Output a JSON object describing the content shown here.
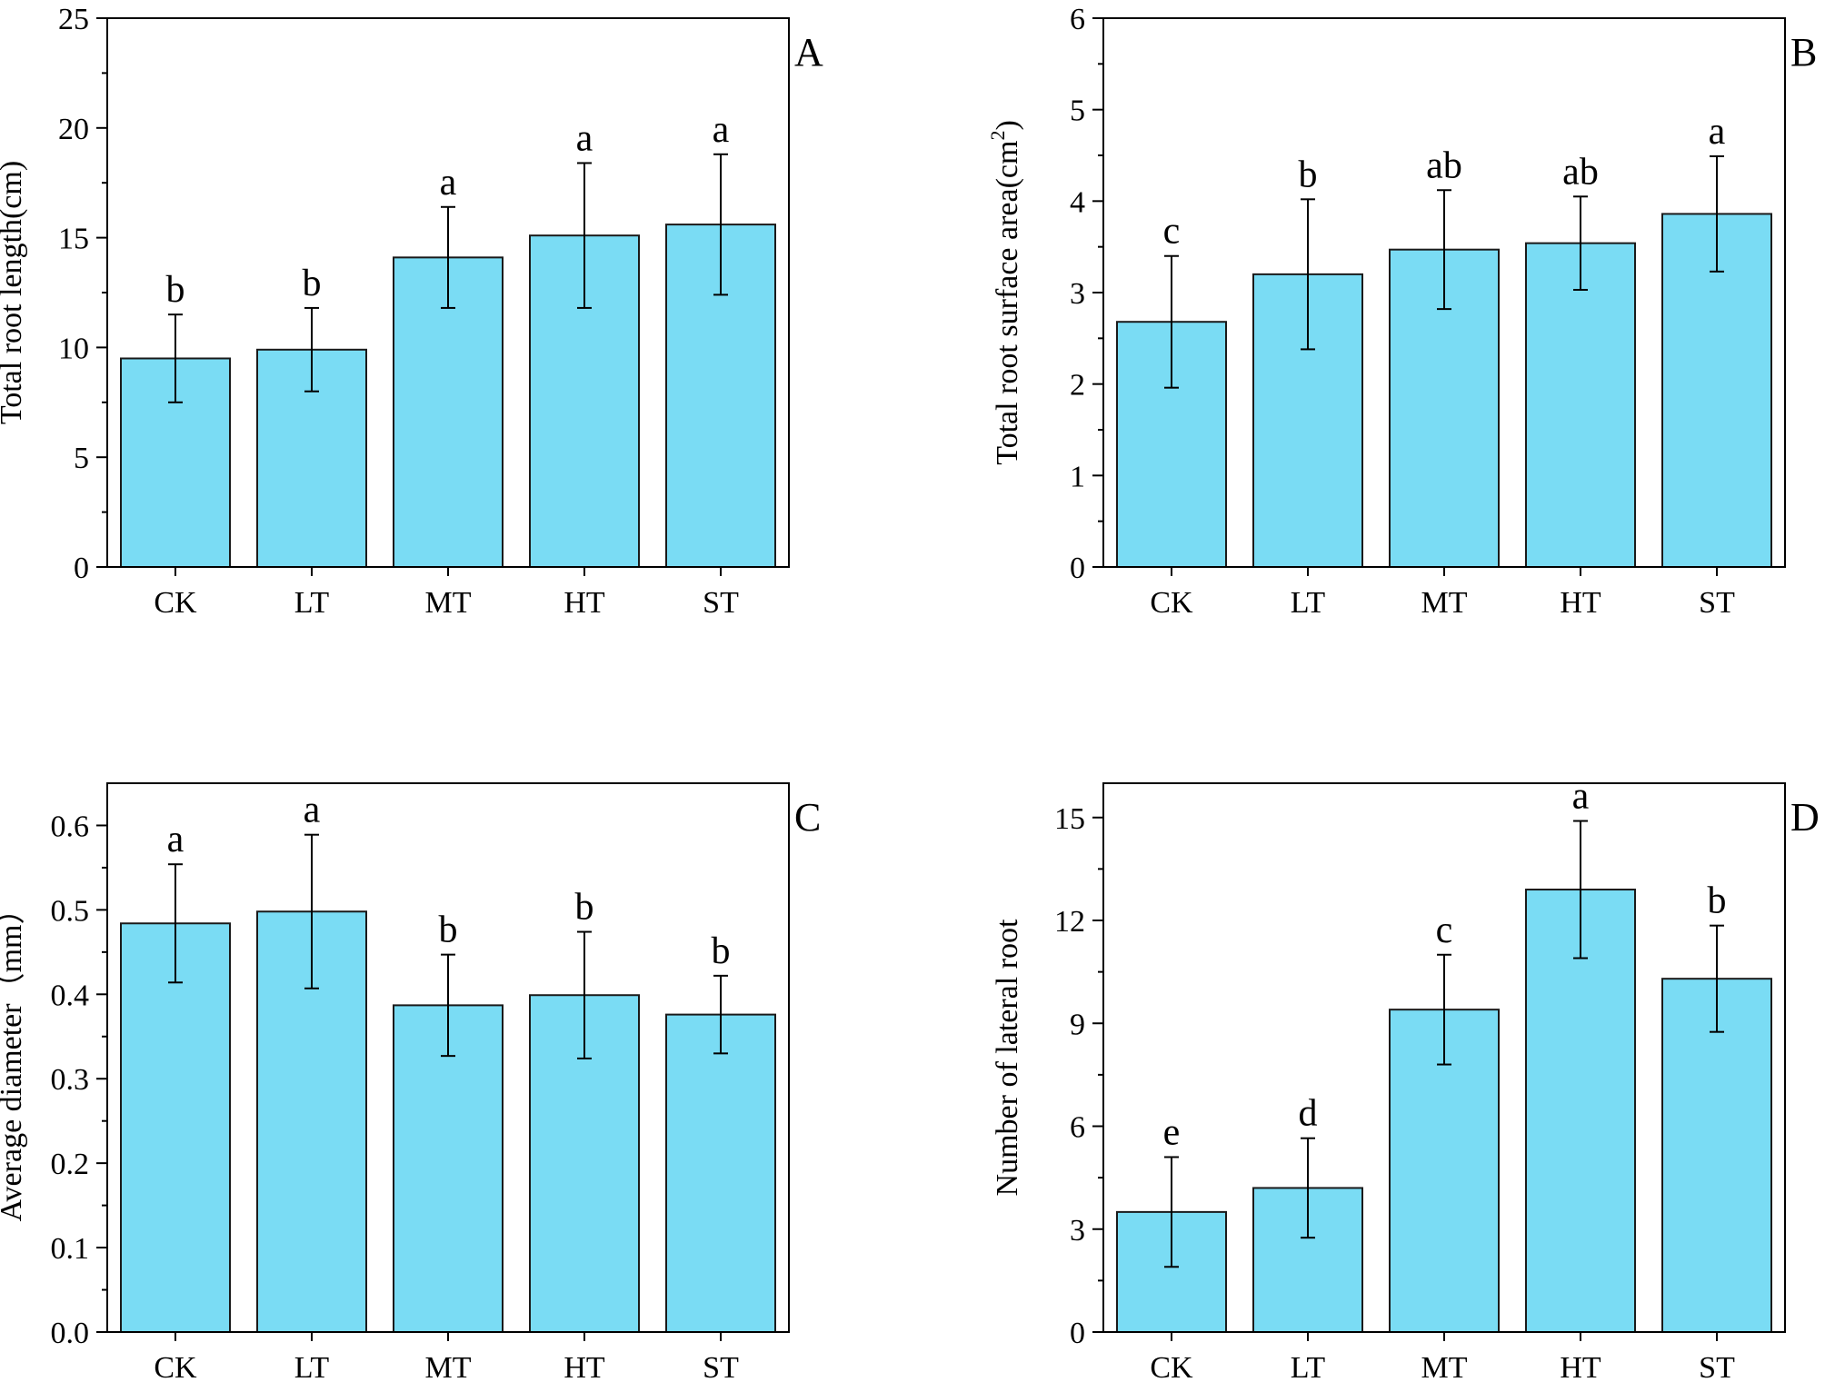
{
  "chart_data": [
    {
      "panel_label": "A",
      "type": "bar",
      "categories": [
        "CK",
        "LT",
        "MT",
        "HT",
        "ST"
      ],
      "values": [
        9.5,
        9.9,
        14.1,
        15.1,
        15.6
      ],
      "errors": [
        2.0,
        1.9,
        2.3,
        3.3,
        3.2
      ],
      "letters": [
        "b",
        "b",
        "a",
        "a",
        "a"
      ],
      "ylabel": "Total root length(cm)",
      "ylim": [
        0,
        25
      ],
      "yticks": [
        0,
        5,
        10,
        15,
        20,
        25
      ],
      "ytick_labels": [
        "0",
        "5",
        "10",
        "15",
        "20",
        "25"
      ],
      "bar_color": "#7adcf4"
    },
    {
      "panel_label": "B",
      "type": "bar",
      "categories": [
        "CK",
        "LT",
        "MT",
        "HT",
        "ST"
      ],
      "values": [
        2.68,
        3.2,
        3.47,
        3.54,
        3.86
      ],
      "errors": [
        0.72,
        0.82,
        0.65,
        0.51,
        0.63
      ],
      "letters": [
        "c",
        "b",
        "ab",
        "ab",
        "a"
      ],
      "ylabel": "Total root surface area(cm",
      "ylabel_sup": "2",
      "ylabel_end": ")",
      "ylim": [
        0,
        6
      ],
      "yticks": [
        0,
        1,
        2,
        3,
        4,
        5,
        6
      ],
      "ytick_labels": [
        "0",
        "1",
        "2",
        "3",
        "4",
        "5",
        "6"
      ],
      "bar_color": "#7adcf4"
    },
    {
      "panel_label": "C",
      "type": "bar",
      "categories": [
        "CK",
        "LT",
        "MT",
        "HT",
        "ST"
      ],
      "values": [
        0.484,
        0.498,
        0.387,
        0.399,
        0.376
      ],
      "errors": [
        0.07,
        0.091,
        0.06,
        0.075,
        0.046
      ],
      "letters": [
        "a",
        "a",
        "b",
        "b",
        "b"
      ],
      "ylabel": "Average diameter（mm）",
      "ylim": [
        0,
        0.65
      ],
      "yticks": [
        0,
        0.1,
        0.2,
        0.3,
        0.4,
        0.5,
        0.6
      ],
      "ytick_labels": [
        "0.0",
        "0.1",
        "0.2",
        "0.3",
        "0.4",
        "0.5",
        "0.6"
      ],
      "bar_color": "#7adcf4"
    },
    {
      "panel_label": "D",
      "type": "bar",
      "categories": [
        "CK",
        "LT",
        "MT",
        "HT",
        "ST"
      ],
      "values": [
        3.5,
        4.2,
        9.4,
        12.9,
        10.3
      ],
      "errors": [
        1.6,
        1.45,
        1.6,
        2.0,
        1.55
      ],
      "letters": [
        "e",
        "d",
        "c",
        "a",
        "b"
      ],
      "ylabel": "Number of lateral root",
      "ylim": [
        0,
        16
      ],
      "yticks": [
        0,
        3,
        6,
        9,
        12,
        15
      ],
      "ytick_labels": [
        "0",
        "3",
        "6",
        "9",
        "12",
        "15"
      ],
      "bar_color": "#7adcf4"
    }
  ]
}
